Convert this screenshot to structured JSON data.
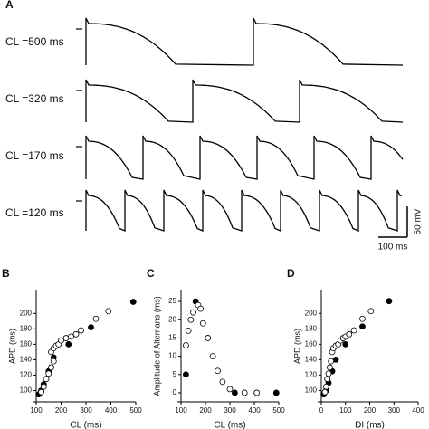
{
  "panel_a": {
    "label": "A",
    "traces": [
      "CL =500 ms",
      "CL =320 ms",
      "CL =170 ms",
      "CL =120 ms"
    ],
    "scale_v": "50 mV",
    "scale_t": "100 ms"
  },
  "chart_data": [
    {
      "type": "scatter",
      "panel": "B",
      "xlabel": "CL (ms)",
      "ylabel": "APD (ms)",
      "xlim": [
        100,
        500
      ],
      "xticks": [
        100,
        200,
        300,
        400,
        500
      ],
      "ylim": [
        90,
        225
      ],
      "yticks": [
        100,
        120,
        140,
        160,
        180,
        200
      ],
      "series": [
        {
          "color": "#000000",
          "fill": true,
          "x": [
            110,
            120,
            130,
            150,
            170,
            230,
            320,
            490
          ],
          "values": [
            95,
            100,
            108,
            125,
            143,
            160,
            182,
            215
          ]
        },
        {
          "color": "#000000",
          "fill": false,
          "x": [
            120,
            130,
            140,
            150,
            160,
            170,
            160,
            170,
            180,
            190,
            200,
            220,
            240,
            260,
            280,
            340,
            390
          ],
          "values": [
            98,
            105,
            115,
            122,
            130,
            138,
            150,
            155,
            158,
            160,
            165,
            168,
            170,
            173,
            178,
            193,
            203
          ]
        }
      ]
    },
    {
      "type": "scatter",
      "panel": "C",
      "xlabel": "CL (ms)",
      "ylabel": "Amplitude of Alternans (ms)",
      "xlim": [
        100,
        500
      ],
      "xticks": [
        100,
        200,
        300,
        400,
        500
      ],
      "ylim": [
        -1.5,
        27
      ],
      "yticks": [
        0,
        5,
        10,
        15,
        20,
        25
      ],
      "series": [
        {
          "color": "#000000",
          "fill": true,
          "x": [
            120,
            160,
            320,
            490
          ],
          "values": [
            5,
            25,
            0,
            0
          ]
        },
        {
          "color": "#000000",
          "fill": false,
          "x": [
            120,
            130,
            140,
            150,
            170,
            180,
            190,
            210,
            230,
            250,
            270,
            300,
            360,
            410
          ],
          "values": [
            13,
            17,
            20,
            22,
            24,
            23,
            19,
            15,
            10,
            6,
            3,
            1,
            0,
            0
          ]
        }
      ]
    },
    {
      "type": "scatter",
      "panel": "D",
      "xlabel": "DI (ms)",
      "ylabel": "APD (ms)",
      "xlim": [
        0,
        400
      ],
      "xticks": [
        0,
        100,
        200,
        300,
        400
      ],
      "ylim": [
        90,
        225
      ],
      "yticks": [
        100,
        120,
        140,
        160,
        180,
        200
      ],
      "series": [
        {
          "color": "#000000",
          "fill": true,
          "x": [
            10,
            20,
            30,
            45,
            60,
            100,
            170,
            280
          ],
          "values": [
            95,
            100,
            110,
            125,
            140,
            160,
            183,
            216
          ]
        },
        {
          "color": "#000000",
          "fill": false,
          "x": [
            15,
            20,
            25,
            30,
            35,
            40,
            45,
            50,
            60,
            70,
            80,
            90,
            100,
            115,
            135,
            170,
            205
          ],
          "values": [
            98,
            105,
            115,
            122,
            130,
            138,
            150,
            155,
            158,
            160,
            165,
            168,
            170,
            173,
            178,
            193,
            203
          ]
        }
      ]
    }
  ]
}
